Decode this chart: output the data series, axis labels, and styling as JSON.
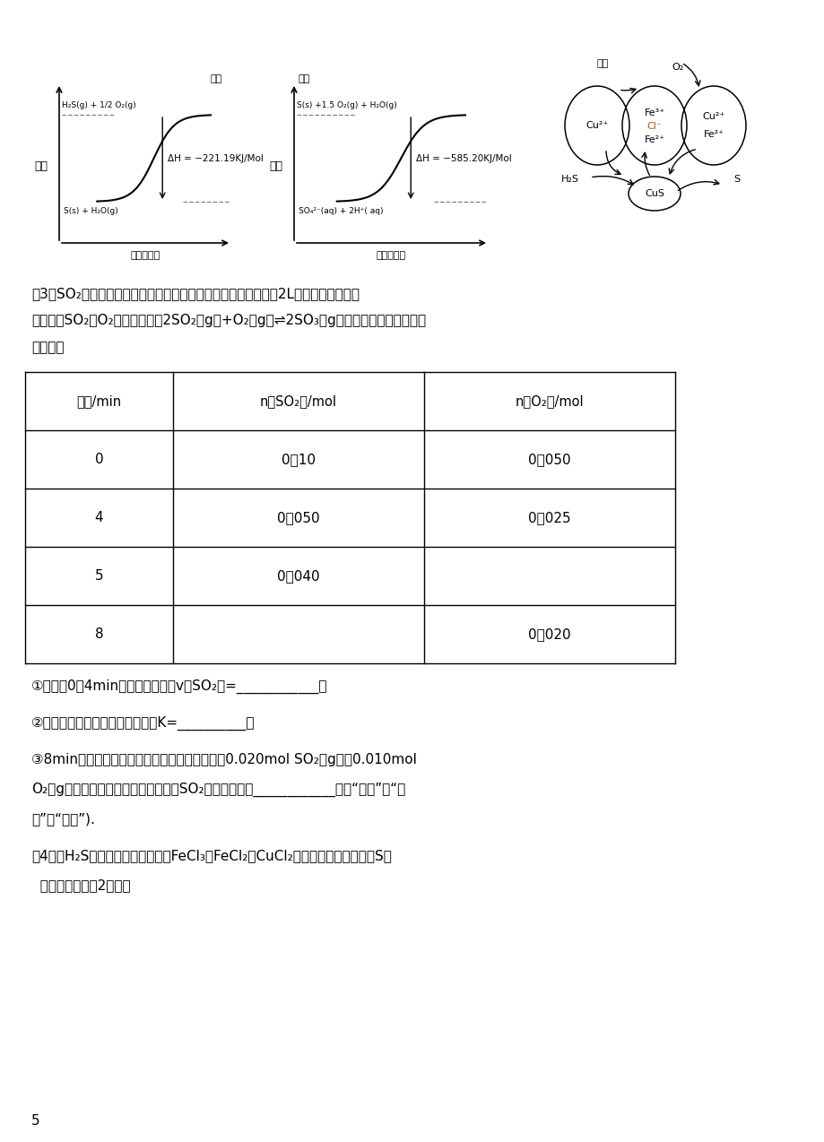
{
  "bg_color": "#ffffff",
  "page_number": "5",
  "graph1_ylabel": "能量",
  "graph1_xlabel": "第一步反应",
  "graph1_reactant": "H₂S(g) + 1/2 O₂(g)",
  "graph1_product": "S(s) + H₂O(g)",
  "graph1_dH": "ΔH = −221.19KJ/Mol",
  "graph1_title": "图一",
  "graph2_ylabel": "能量",
  "graph2_xlabel": "第二步反应",
  "graph2_reactant": "S(s) +1.5 O₂(g) + H₂O(g)",
  "graph2_product": "SO₄²⁻(aq) + 2H⁺( aq)",
  "graph2_dH": "ΔH = −585.20KJ/Mol",
  "graph2_title": "图二",
  "para3_line1": "（3）SO₂是工业制硫酸的原料气体之一，一定温度下，向容积为2L的密闭容器中充入",
  "para3_line2": "一定量的SO₂和O₂，发生反应：2SO₂（g）+O₂（g）⇌2SO₃（g），过程中测定的部分数",
  "para3_line3": "据见表：",
  "table_h0": "时间/min",
  "table_h1": "n（SO₂）/mol",
  "table_h2": "n（O₂）/mol",
  "table_r0": [
    "0",
    "0．10",
    "0．050"
  ],
  "table_r1": [
    "4",
    "0．050",
    "0．025"
  ],
  "table_r2": [
    "5",
    "0．040",
    ""
  ],
  "table_r3": [
    "8",
    "",
    "0．020"
  ],
  "q1": "①反应在0～4min内的平均速率为v（SO₂）=____________；",
  "q2": "②此温度下该反应的化学平衡常数K=__________，",
  "q3_1": "③8min时，维持温度不变，往反应容器中再通入0.020mol SO₂（g），0.010mol",
  "q3_2": "O₂（g），重新达到平衡时混合气体中SO₂的百分含量将____________（填“减小”，“增",
  "q3_3": "大”或“不变”).",
  "q4_1": "（4）将H₂S和空气的混合气体通入FeCl₃、FeCl₂、CuCl₂的混合溶液中反应回收S，",
  "q4_2": "  其物质转化如图2所示："
}
